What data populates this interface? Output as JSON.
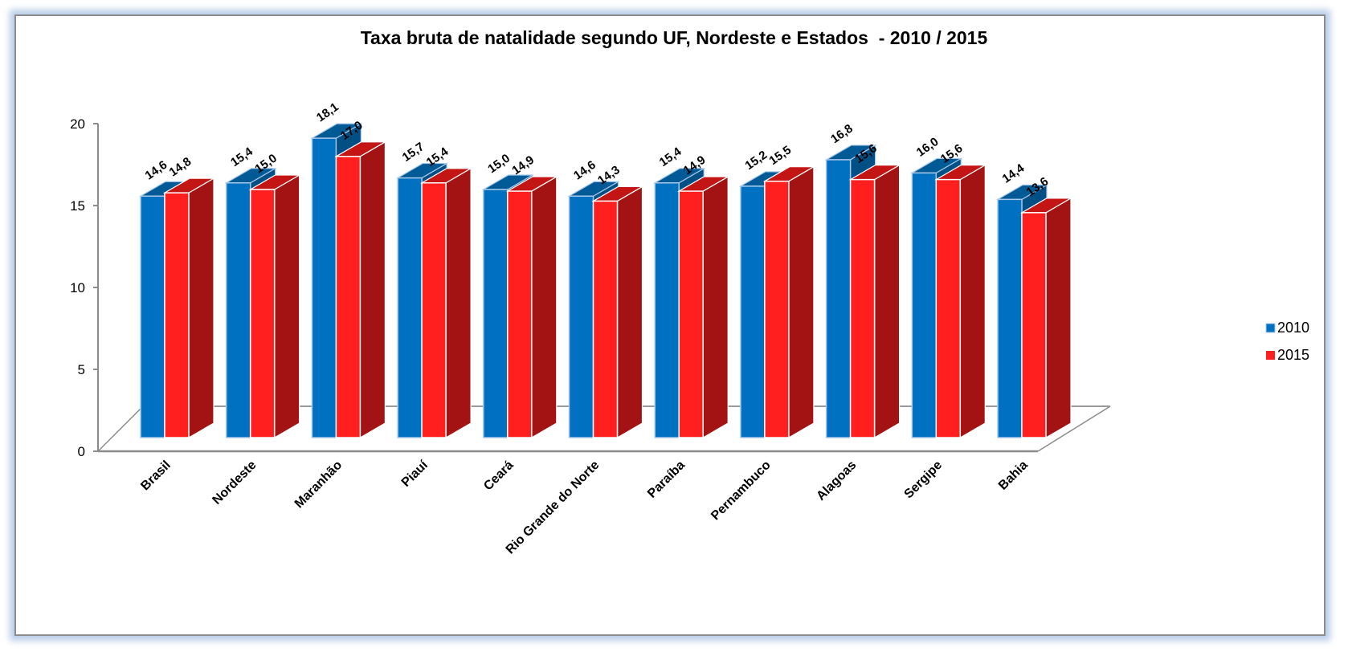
{
  "chart_data": {
    "type": "bar",
    "style": "3d-clustered",
    "title": "Taxa bruta de natalidade segundo UF, Nordeste e Estados  - 2010 / 2015",
    "xlabel": "",
    "ylabel": "",
    "ylim": [
      0,
      20
    ],
    "yticks": [
      0,
      5,
      10,
      15,
      20
    ],
    "ytick_labels": [
      "0",
      "5",
      "10",
      "15",
      "20"
    ],
    "grid": false,
    "legend_position": "right",
    "categories": [
      "Brasil",
      "Nordeste",
      "Maranhão",
      "Piauí",
      "Ceará",
      "Rio Grande do Norte",
      "Paraíba",
      "Pernambuco",
      "Alagoas",
      "Sergipe",
      "Bahia"
    ],
    "series": [
      {
        "name": "2010",
        "color": "#0070c0",
        "top_color": "#005a96",
        "side_color": "#004f85",
        "values": [
          14.6,
          15.4,
          18.1,
          15.7,
          15.0,
          14.6,
          15.4,
          15.2,
          16.8,
          16.0,
          14.4
        ],
        "labels": [
          "14,6",
          "15,4",
          "18,1",
          "15,7",
          "15,0",
          "14,6",
          "15,4",
          "15,2",
          "16,8",
          "16,0",
          "14,4"
        ]
      },
      {
        "name": "2015",
        "color": "#ff1f1f",
        "top_color": "#c41515",
        "side_color": "#a31313",
        "values": [
          14.8,
          15.0,
          17.0,
          15.4,
          14.9,
          14.3,
          14.9,
          15.5,
          15.6,
          15.6,
          13.6
        ],
        "labels": [
          "14,8",
          "15,0",
          "17,0",
          "15,4",
          "14,9",
          "14,3",
          "14,9",
          "15,5",
          "15,6",
          "15,6",
          "13,6"
        ]
      }
    ]
  }
}
